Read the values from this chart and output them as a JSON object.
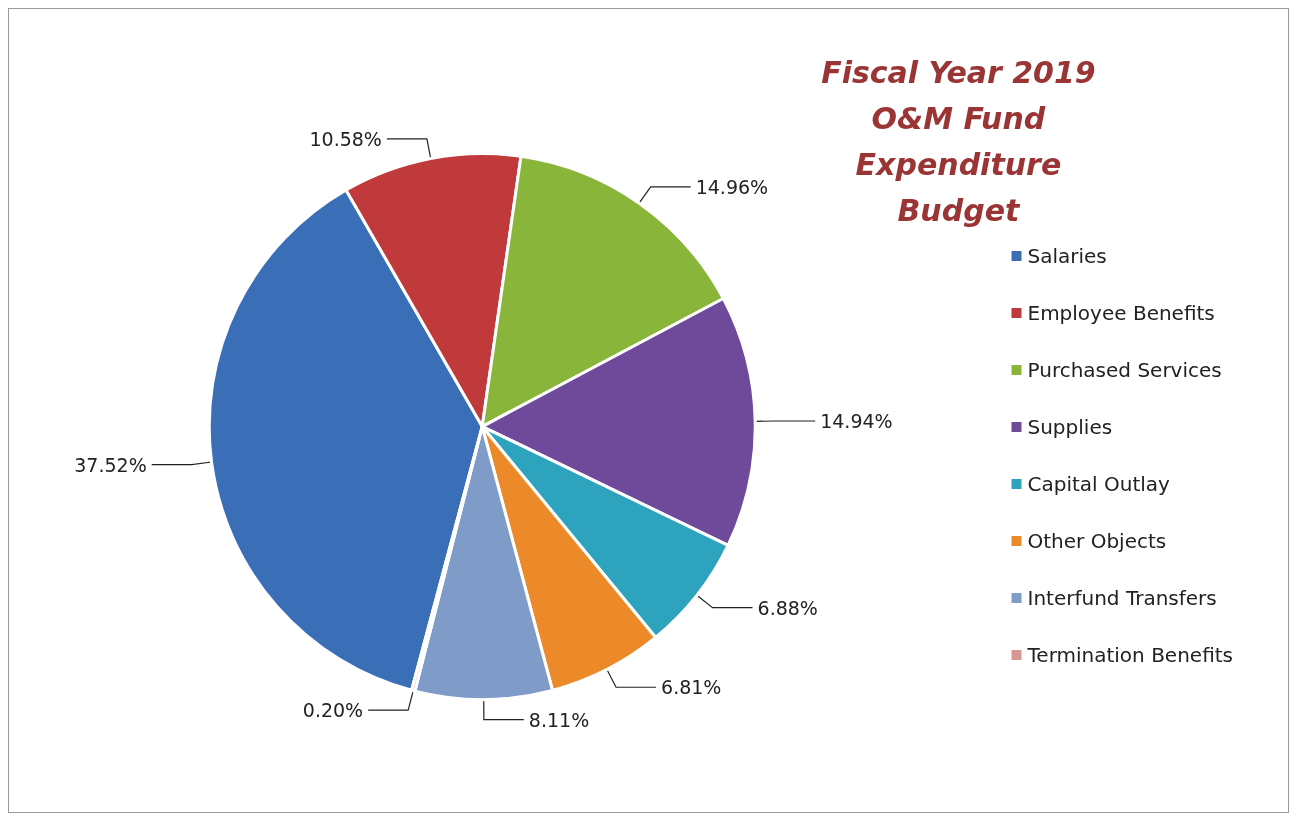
{
  "chart_data": {
    "type": "pie",
    "title": "Fiscal Year 2019 O&M Fund Expenditure Budget",
    "categories": [
      "Salaries",
      "Employee Benefits",
      "Purchased Services",
      "Supplies",
      "Capital Outlay",
      "Other Objects",
      "Interfund Transfers",
      "Termination Benefits"
    ],
    "values": [
      37.52,
      10.58,
      14.96,
      14.94,
      6.88,
      6.81,
      8.11,
      0.2
    ],
    "value_labels": [
      "37.52%",
      "10.58%",
      "14.96%",
      "14.94%",
      "6.88%",
      "6.81%",
      "8.11%",
      "0.20%"
    ],
    "colors": [
      "#3a6fb8",
      "#c0393b",
      "#8ab53b",
      "#6f4a9a",
      "#2ea3bd",
      "#ec8a2a",
      "#7f9cc9",
      "#d99594"
    ],
    "legend": "right"
  }
}
